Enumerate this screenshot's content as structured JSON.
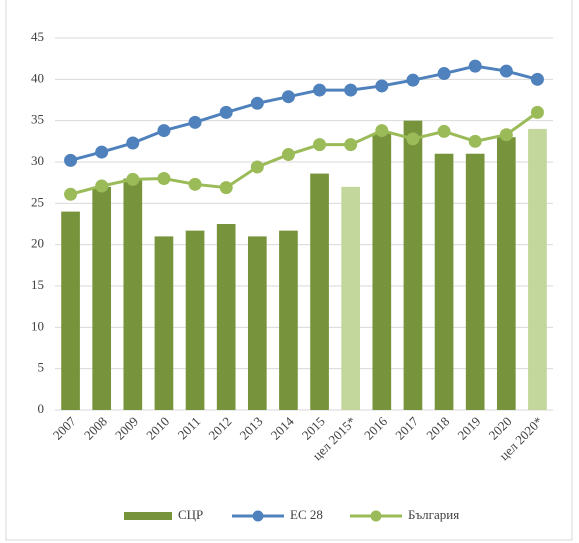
{
  "chart_data": {
    "type": "bar_line",
    "categories": [
      "2007",
      "2008",
      "2009",
      "2010",
      "2011",
      "2012",
      "2013",
      "2014",
      "2015",
      "цел 2015*",
      "2016",
      "2017",
      "2018",
      "2019",
      "2020",
      "цел 2020*"
    ],
    "series": [
      {
        "name": "СЦР",
        "type": "bar",
        "color": "#77933c",
        "colors": [
          "#77933c",
          "#77933c",
          "#77933c",
          "#77933c",
          "#77933c",
          "#77933c",
          "#77933c",
          "#77933c",
          "#77933c",
          "#c3d69b",
          "#77933c",
          "#77933c",
          "#77933c",
          "#77933c",
          "#77933c",
          "#c3d69b"
        ],
        "values": [
          24,
          27,
          28,
          21,
          21.7,
          22.5,
          21,
          21.7,
          28.6,
          27,
          33.5,
          35,
          31,
          31,
          33,
          34
        ]
      },
      {
        "name": "ЕС 28",
        "type": "line",
        "color": "#4f81bd",
        "values": [
          30.2,
          31.2,
          32.3,
          33.8,
          34.8,
          36,
          37.1,
          37.9,
          38.7,
          38.7,
          39.2,
          39.9,
          40.7,
          41.6,
          41,
          40
        ]
      },
      {
        "name": "България",
        "type": "line",
        "color": "#9bbb59",
        "values": [
          26.1,
          27.1,
          27.9,
          28,
          27.3,
          26.9,
          29.4,
          30.9,
          32.1,
          32.1,
          33.8,
          32.8,
          33.7,
          32.5,
          33.3,
          36
        ]
      }
    ],
    "ylim": [
      0,
      45
    ],
    "yticks": [
      0,
      5,
      10,
      15,
      20,
      25,
      30,
      35,
      40,
      45
    ],
    "grid": true,
    "legend": "bottom"
  }
}
